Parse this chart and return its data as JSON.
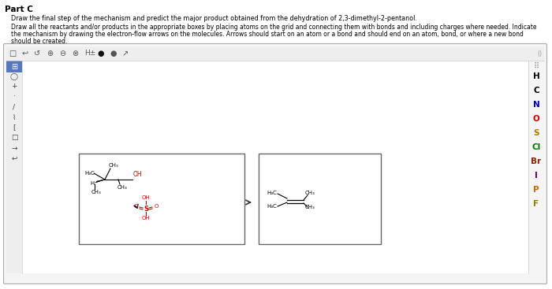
{
  "title": "Part C",
  "line1": "Draw the final step of the mechanism and predict the major product obtained from the dehydration of 2,3-dimethyl-2-pentanol.",
  "line2": "Draw all the reactants and/or products in the appropriate boxes by placing atoms on the grid and connecting them with bonds and including charges where needed. Indicate",
  "line3": "the mechanism by drawing the electron-flow arrows on the molecules. Arrows should start on an atom or a bond and should end on an atom, bond, or where a new bond",
  "line4": "should be created.",
  "right_panel_elements": [
    "H",
    "C",
    "N",
    "O",
    "S",
    "Cl",
    "Br",
    "I",
    "P",
    "F"
  ],
  "element_colors": {
    "H": "#000000",
    "C": "#000000",
    "N": "#0000cd",
    "O": "#cc0000",
    "S": "#bb7700",
    "Cl": "#007700",
    "Br": "#882200",
    "I": "#550077",
    "P": "#cc6600",
    "F": "#888800"
  },
  "bg_color": "#ffffff",
  "outer_bg": "#f5f5f5",
  "toolbar_bg": "#eeeeee",
  "box_border": "#666666",
  "mol_color": "#000000",
  "red_color": "#cc0000",
  "arrow_color": "#333333"
}
